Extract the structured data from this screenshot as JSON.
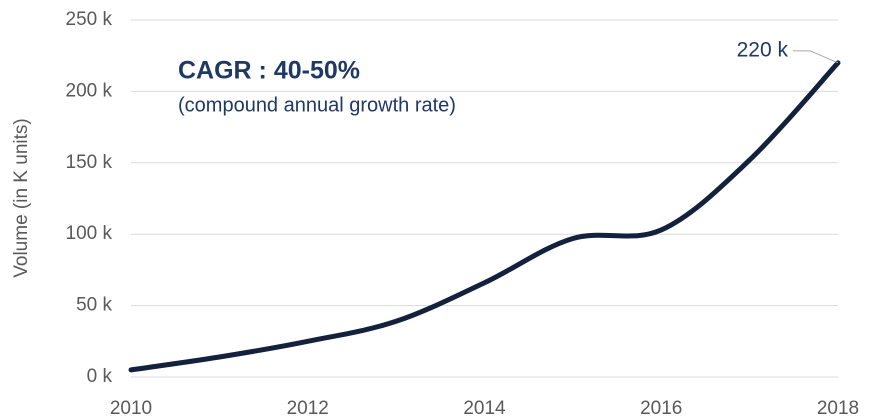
{
  "chart_data": {
    "type": "line",
    "annotations": [
      "CAGR : 40-50%",
      "(compound annual growth rate)"
    ],
    "y_label": "Volume (in K units)",
    "x": [
      2010,
      2011,
      2012,
      2013,
      2014,
      2015,
      2016,
      2017,
      2018
    ],
    "xlim": [
      2010,
      2018
    ],
    "xticks": [
      2010,
      2012,
      2014,
      2016,
      2018
    ],
    "series": [
      {
        "name": "Volume",
        "color": "#14213d",
        "values": [
          5,
          14,
          25,
          39,
          66,
          97,
          103,
          152,
          220
        ],
        "value_labels": [
          null,
          null,
          null,
          null,
          null,
          null,
          null,
          null,
          "220 k"
        ]
      }
    ],
    "ylim": [
      0,
      250
    ],
    "yticks": [
      {
        "value": 0,
        "label": "0 k"
      },
      {
        "value": 50,
        "label": "50 k"
      },
      {
        "value": 100,
        "label": "100 k"
      },
      {
        "value": 150,
        "label": "150 k"
      },
      {
        "value": 200,
        "label": "200 k"
      },
      {
        "value": 250,
        "label": "250 k"
      }
    ],
    "grid": true
  }
}
